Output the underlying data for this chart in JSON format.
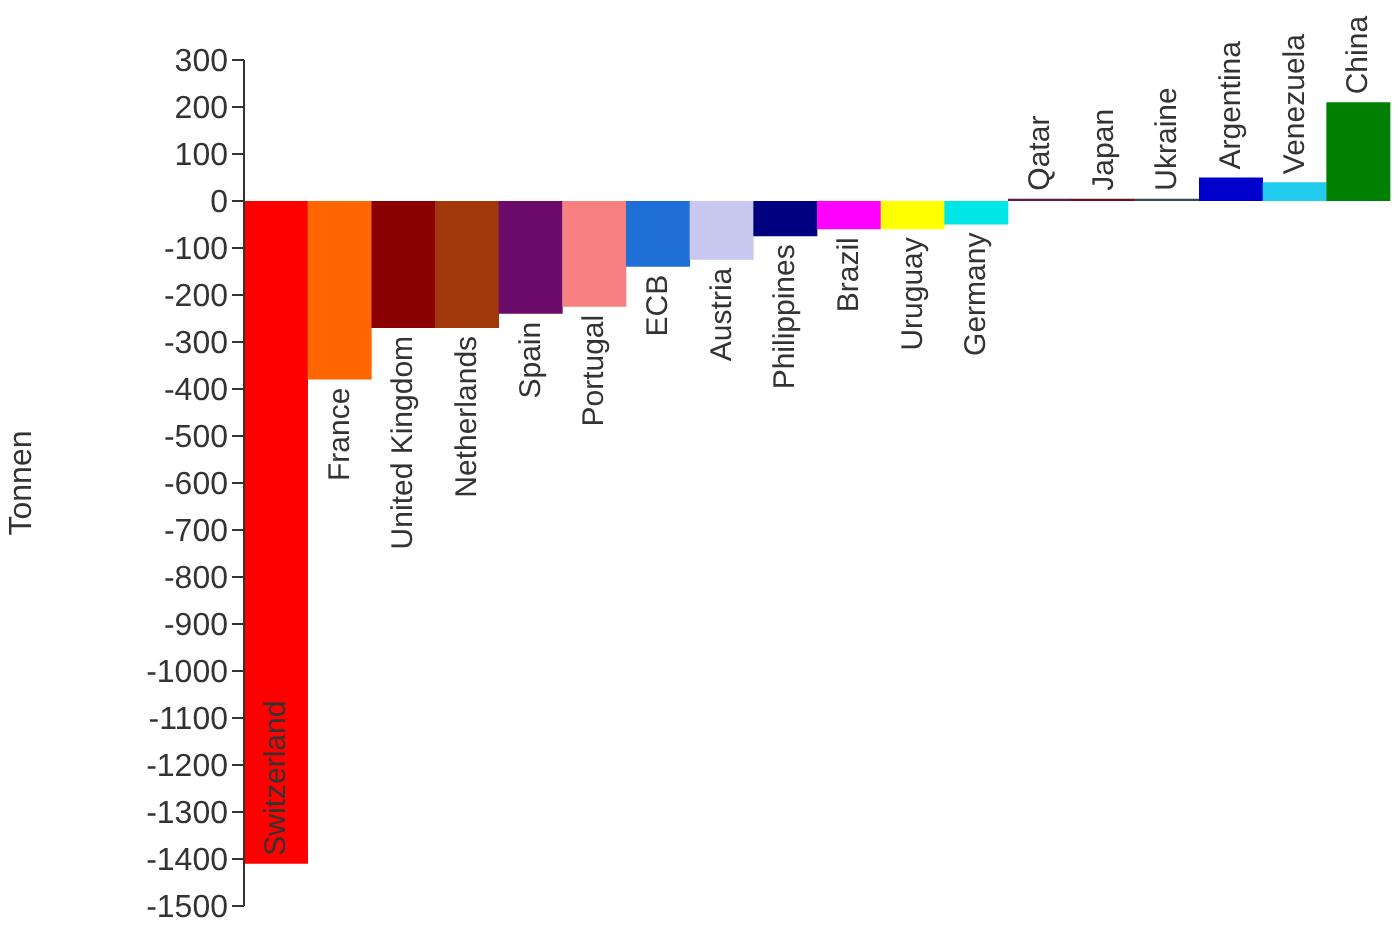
{
  "chart_data": {
    "type": "bar",
    "ylabel": "Tonnen",
    "categories": [
      "Switzerland",
      "France",
      "United Kingdom",
      "Netherlands",
      "Spain",
      "Portugal",
      "ECB",
      "Austria",
      "Philippines",
      "Brazil",
      "Uruguay",
      "Germany",
      "Qatar",
      "Japan",
      "Ukraine",
      "Argentina",
      "Venezuela",
      "China"
    ],
    "values": [
      -1410,
      -380,
      -270,
      -270,
      -240,
      -225,
      -140,
      -125,
      -75,
      -60,
      -60,
      -50,
      5,
      5,
      5,
      50,
      40,
      210
    ],
    "colors": [
      "#ff0000",
      "#ff6600",
      "#8b0000",
      "#a0380a",
      "#6a0a6a",
      "#f78080",
      "#1f6fd6",
      "#c8c8f0",
      "#000080",
      "#ff00ff",
      "#ffff00",
      "#00e5e5",
      "#5a1a4a",
      "#6b1020",
      "#2f4f4f",
      "#0000cc",
      "#22ccee",
      "#008000"
    ],
    "ylim": [
      -1500,
      300
    ],
    "yticks": [
      300,
      200,
      100,
      0,
      -100,
      -200,
      -300,
      -400,
      -500,
      -600,
      -700,
      -800,
      -900,
      -1000,
      -1100,
      -1200,
      -1300,
      -1400,
      -1500
    ],
    "grid": false,
    "legend": false
  }
}
